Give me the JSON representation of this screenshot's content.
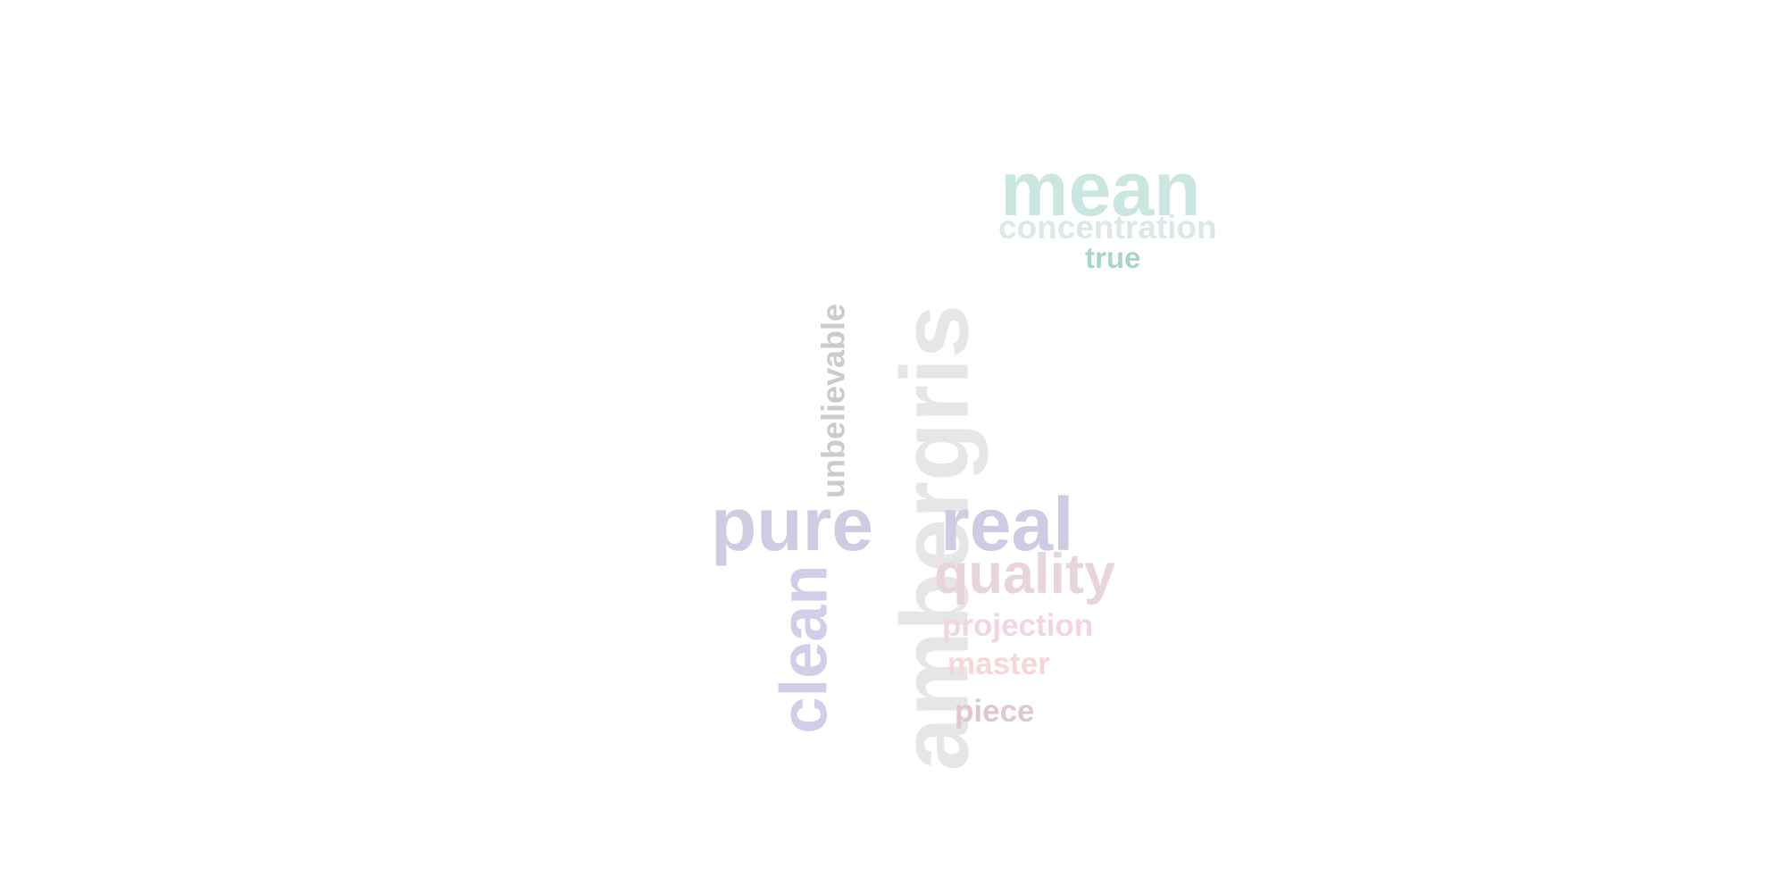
{
  "words": [
    {
      "text": "ambergris",
      "color": "#e6e6e6",
      "orientation": "vertical"
    },
    {
      "text": "pure",
      "color": "#cfcbe2",
      "orientation": "horizontal"
    },
    {
      "text": "real",
      "color": "#cfcbe2",
      "orientation": "horizontal"
    },
    {
      "text": "clean",
      "color": "#cfcfea",
      "orientation": "vertical"
    },
    {
      "text": "mean",
      "color": "#c9e7e0",
      "orientation": "horizontal"
    },
    {
      "text": "quality",
      "color": "#e8d4dd",
      "orientation": "horizontal"
    },
    {
      "text": "unbelievable",
      "color": "#cbcbcb",
      "orientation": "vertical"
    },
    {
      "text": "concentration",
      "color": "#dde7ea",
      "orientation": "horizontal"
    },
    {
      "text": "projection",
      "color": "#f3d6dd",
      "orientation": "horizontal"
    },
    {
      "text": "master",
      "color": "#f6d6da",
      "orientation": "horizontal"
    },
    {
      "text": "piece",
      "color": "#dfc7d0",
      "orientation": "horizontal"
    },
    {
      "text": "true",
      "color": "#a7d6c6",
      "orientation": "horizontal"
    }
  ]
}
